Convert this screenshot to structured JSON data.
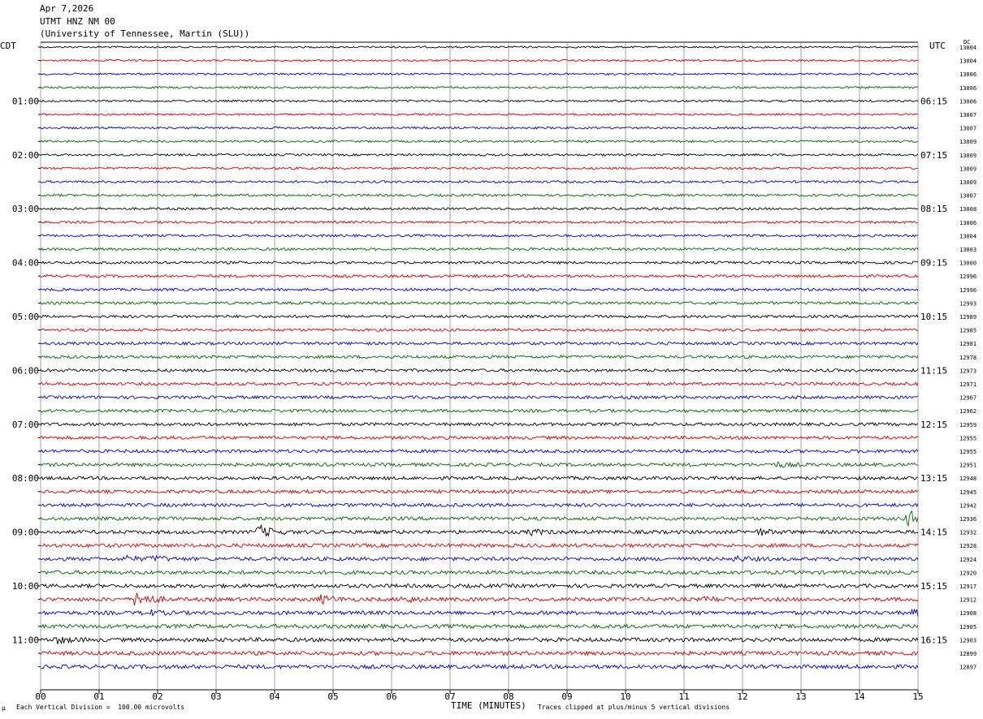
{
  "header": {
    "date": "Apr 7,2026",
    "station": "UTMT HNZ NM 00",
    "network": "(University of Tennessee, Martin (SLU))"
  },
  "labels": {
    "left_zone": "CDT",
    "right_zone": "UTC",
    "dc": "DC"
  },
  "footer": {
    "scale_mark": "µ",
    "scale": "Each Vertical Division =  100.00 microvolts",
    "xlabel": "TIME (MINUTES)",
    "clip": "Traces clipped at plus/minus 5 vertical divisions"
  },
  "chart_data": {
    "type": "line",
    "title": "UTMT HNZ NM 00",
    "xlabel": "TIME (MINUTES)",
    "xlim": [
      0,
      15
    ],
    "x_ticks": [
      "00",
      "01",
      "02",
      "03",
      "04",
      "05",
      "06",
      "07",
      "08",
      "09",
      "10",
      "11",
      "12",
      "13",
      "14",
      "15"
    ],
    "trace_colors": [
      "#000000",
      "#d40000",
      "#0000cc",
      "#006600"
    ],
    "left_hour_labels": [
      "01:00",
      "02:00",
      "03:00",
      "04:00",
      "05:00",
      "06:00",
      "07:00",
      "08:00",
      "09:00",
      "10:00",
      "11:00"
    ],
    "right_hour_labels": [
      "06:15",
      "07:15",
      "08:15",
      "09:15",
      "10:15",
      "11:15",
      "12:15",
      "13:15",
      "14:15",
      "15:15",
      "16:15"
    ],
    "dc_offsets": [
      13004,
      13004,
      13006,
      13006,
      13006,
      13007,
      13007,
      13009,
      13009,
      13009,
      13009,
      13007,
      13008,
      13006,
      13004,
      13003,
      13000,
      12996,
      12996,
      12993,
      12989,
      12985,
      12981,
      12978,
      12973,
      12971,
      12967,
      12962,
      12959,
      12955,
      12955,
      12951,
      12948,
      12945,
      12942,
      12936,
      12932,
      12928,
      12924,
      12920,
      12917,
      12912,
      12908,
      12905,
      12903,
      12899,
      12897
    ],
    "events": [
      {
        "row": 35,
        "minute": 14.85,
        "amplitude": 3
      },
      {
        "row": 36,
        "minute": 3.75,
        "amplitude": 2.5
      },
      {
        "row": 36,
        "minute": 12.3,
        "amplitude": 1
      },
      {
        "row": 36,
        "minute": 8.4,
        "amplitude": 1
      },
      {
        "row": 38,
        "minute": 1.45,
        "amplitude": 1
      },
      {
        "row": 38,
        "minute": 1.95,
        "amplitude": 1
      },
      {
        "row": 38,
        "minute": 11.9,
        "amplitude": 0.8
      },
      {
        "row": 41,
        "minute": 1.65,
        "amplitude": 3.5
      },
      {
        "row": 41,
        "minute": 4.8,
        "amplitude": 1.5
      },
      {
        "row": 41,
        "minute": 6.2,
        "amplitude": 1.2
      },
      {
        "row": 41,
        "minute": 11.4,
        "amplitude": 0.8
      },
      {
        "row": 42,
        "minute": 1.8,
        "amplitude": 1
      },
      {
        "row": 42,
        "minute": 14.95,
        "amplitude": 1.5
      },
      {
        "row": 44,
        "minute": 0.3,
        "amplitude": 1.2
      },
      {
        "row": 31,
        "minute": 12.6,
        "amplitude": 0.8
      }
    ]
  }
}
